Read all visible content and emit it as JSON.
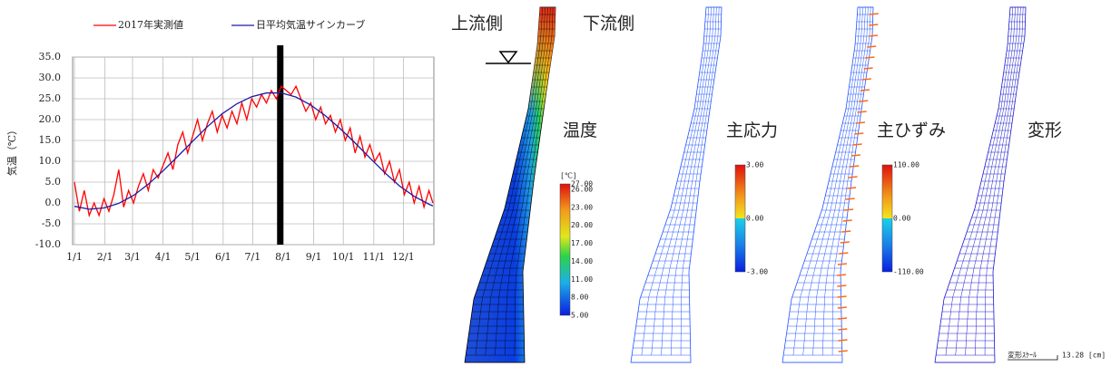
{
  "chart_data": {
    "type": "line",
    "ylabel": "気温（℃）",
    "xlim": [
      1,
      366
    ],
    "xticks": [
      {
        "value": 1,
        "label": "1/1"
      },
      {
        "value": 32,
        "label": "2/1"
      },
      {
        "value": 60,
        "label": "3/1"
      },
      {
        "value": 91,
        "label": "4/1"
      },
      {
        "value": 121,
        "label": "5/1"
      },
      {
        "value": 152,
        "label": "6/1"
      },
      {
        "value": 182,
        "label": "7/1"
      },
      {
        "value": 213,
        "label": "8/1"
      },
      {
        "value": 244,
        "label": "9/1"
      },
      {
        "value": 274,
        "label": "10/1"
      },
      {
        "value": 305,
        "label": "11/1"
      },
      {
        "value": 335,
        "label": "12/1"
      }
    ],
    "ylim": [
      -10,
      35
    ],
    "yticks": [
      {
        "value": -10,
        "label": "-10.0"
      },
      {
        "value": -5,
        "label": "-5.0"
      },
      {
        "value": 0,
        "label": "0.0"
      },
      {
        "value": 5,
        "label": "5.0"
      },
      {
        "value": 10,
        "label": "10.0"
      },
      {
        "value": 15,
        "label": "15.0"
      },
      {
        "value": 20,
        "label": "20.0"
      },
      {
        "value": 25,
        "label": "25.0"
      },
      {
        "value": 30,
        "label": "30.0"
      },
      {
        "value": 35,
        "label": "35.0"
      }
    ],
    "grid": true,
    "marker_x": 210,
    "series": [
      {
        "name": "2017年実測値",
        "color": "#ff0000",
        "x": [
          1,
          6,
          11,
          16,
          21,
          26,
          31,
          36,
          41,
          46,
          51,
          56,
          61,
          66,
          71,
          76,
          81,
          86,
          91,
          96,
          101,
          106,
          111,
          116,
          121,
          126,
          131,
          136,
          141,
          146,
          151,
          156,
          161,
          166,
          171,
          176,
          181,
          186,
          191,
          196,
          201,
          206,
          211,
          216,
          221,
          226,
          231,
          236,
          241,
          246,
          251,
          256,
          261,
          266,
          271,
          276,
          281,
          286,
          291,
          296,
          301,
          306,
          311,
          316,
          321,
          326,
          331,
          336,
          341,
          346,
          351,
          356,
          361,
          365
        ],
        "values": [
          5,
          -2,
          3,
          -3,
          0,
          -3,
          1,
          -2,
          2,
          8,
          -1,
          3,
          0,
          4,
          7,
          3,
          8,
          6,
          9,
          12,
          8,
          14,
          17,
          12,
          16,
          20,
          15,
          19,
          22,
          17,
          21,
          18,
          22,
          19,
          24,
          20,
          25,
          23,
          26,
          24,
          27,
          25,
          28,
          27,
          26,
          28,
          25,
          22,
          24,
          20,
          23,
          19,
          21,
          17,
          20,
          15,
          18,
          12,
          16,
          11,
          14,
          10,
          12,
          7,
          10,
          5,
          8,
          2,
          5,
          0,
          4,
          -1,
          3,
          0
        ]
      },
      {
        "name": "日平均気温サインカーブ",
        "color": "#1a1aa6",
        "x": [
          1,
          16,
          31,
          46,
          61,
          76,
          91,
          106,
          121,
          136,
          151,
          166,
          181,
          196,
          211,
          226,
          241,
          256,
          271,
          286,
          301,
          316,
          331,
          346,
          361,
          365
        ],
        "values": [
          -0.8,
          -1.5,
          -1.2,
          -0.1,
          1.8,
          4.5,
          7.7,
          11.2,
          14.8,
          18.3,
          21.4,
          23.8,
          25.5,
          26.4,
          26.4,
          25.4,
          23.5,
          20.9,
          17.8,
          14.4,
          10.8,
          7.3,
          4.1,
          1.6,
          -0.3,
          -0.7
        ]
      }
    ]
  },
  "panels": {
    "upstream": "上流側",
    "downstream": "下流側",
    "temperature": {
      "title": "温度",
      "unit": "[℃]",
      "labels": [
        "27.00",
        "26.00",
        "23.00",
        "20.00",
        "17.00",
        "14.00",
        "11.00",
        "8.00",
        "5.00"
      ]
    },
    "stress": {
      "title": "主応力",
      "labels": [
        "3.00",
        "0.00",
        "-3.00"
      ]
    },
    "strain": {
      "title": "主ひずみ",
      "labels": [
        "110.00",
        "0.00",
        "-110.00"
      ]
    },
    "deformation": {
      "title": "変形",
      "scale_label": "変形ｽｹｰﾙ",
      "scale_value": "13.28 [cm]"
    }
  }
}
